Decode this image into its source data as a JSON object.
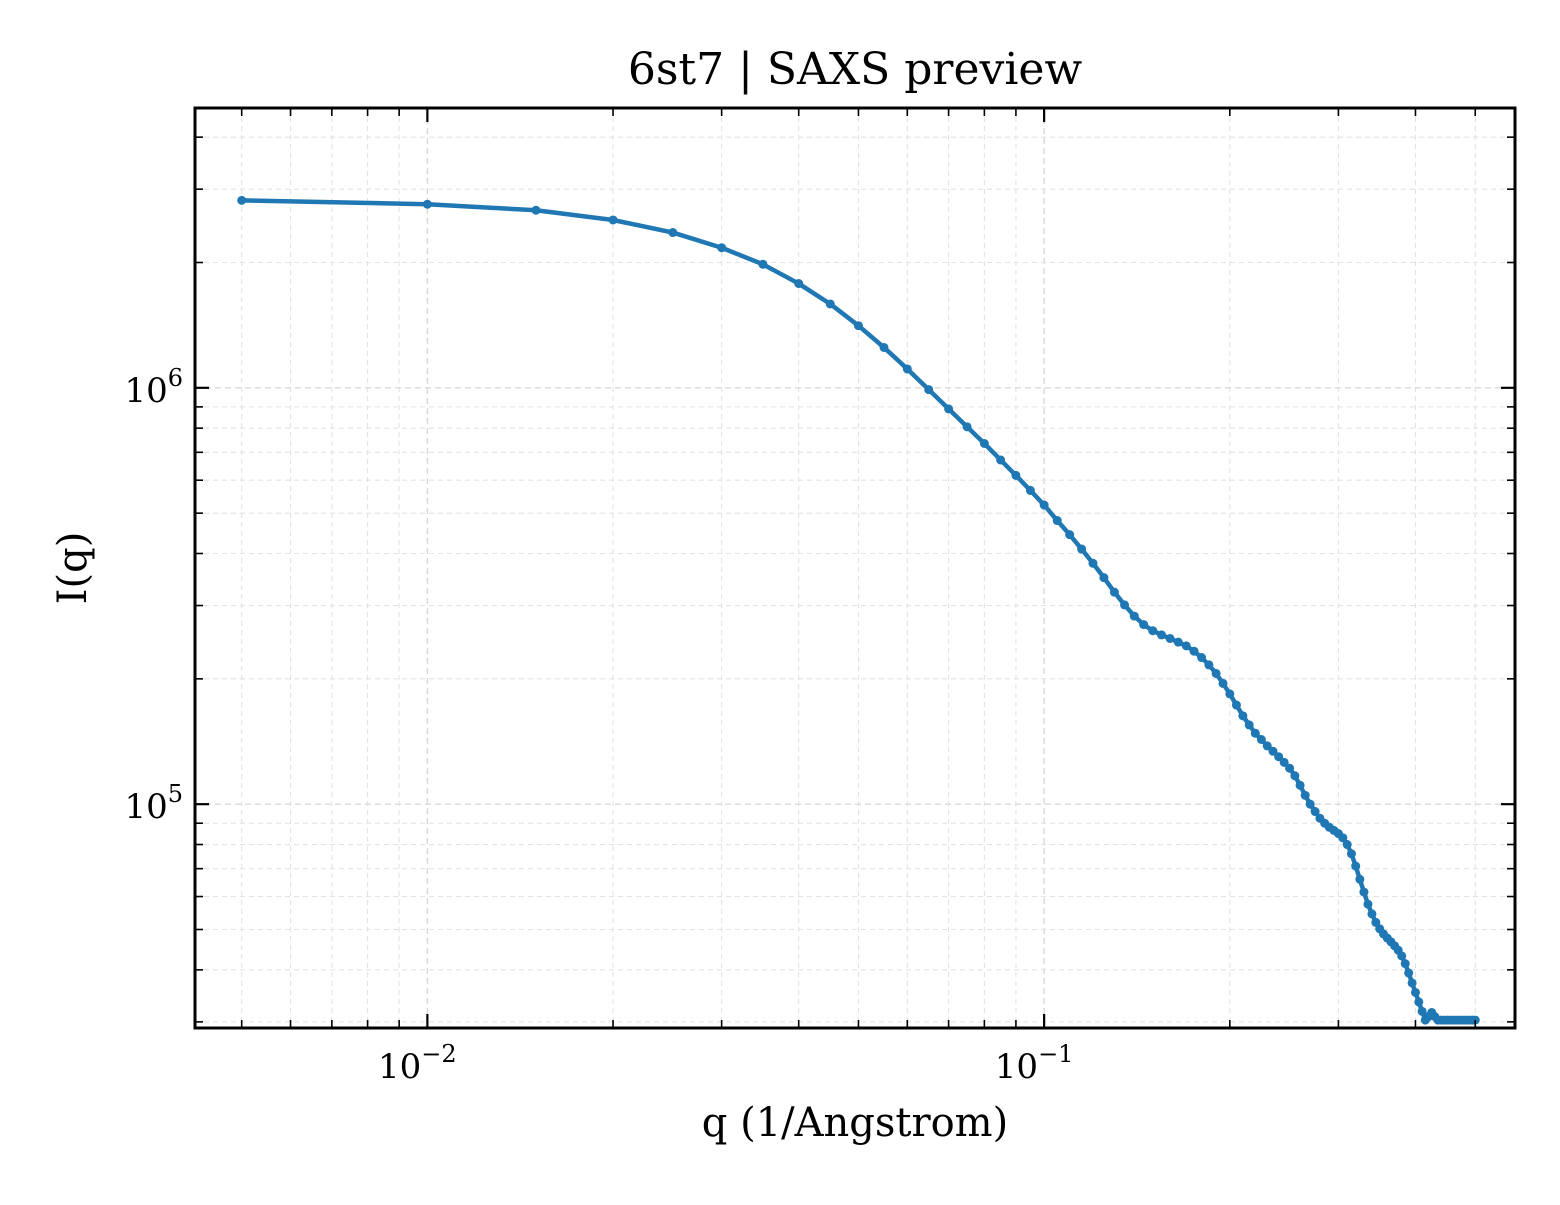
{
  "chart_data": {
    "type": "line",
    "title": "6st7 | SAXS preview",
    "xlabel": "q (1/Angstrom)",
    "ylabel": "I(q)",
    "xscale": "log",
    "yscale": "log",
    "xlim": [
      0.0042,
      0.58
    ],
    "ylim": [
      29000,
      4700000
    ],
    "grid": true,
    "x_ticks": [
      {
        "value": 0.01,
        "base": "10",
        "exp": "−2"
      },
      {
        "value": 0.1,
        "base": "10",
        "exp": "−1"
      }
    ],
    "y_ticks": [
      {
        "value": 100000,
        "base": "10",
        "exp": "5"
      },
      {
        "value": 1000000,
        "base": "10",
        "exp": "6"
      }
    ],
    "series": [
      {
        "color": "#1f77b4",
        "marker": "circle",
        "x": [
          0.005,
          0.01,
          0.015,
          0.02,
          0.025,
          0.03,
          0.035,
          0.04,
          0.045,
          0.05,
          0.055,
          0.06,
          0.065,
          0.07,
          0.075,
          0.08,
          0.085,
          0.09,
          0.095,
          0.1,
          0.105,
          0.11,
          0.115,
          0.12,
          0.125,
          0.13,
          0.135,
          0.14,
          0.145,
          0.15,
          0.155,
          0.16,
          0.165,
          0.17,
          0.175,
          0.18,
          0.185,
          0.19,
          0.195,
          0.2,
          0.205,
          0.21,
          0.215,
          0.22,
          0.225,
          0.23,
          0.235,
          0.24,
          0.245,
          0.25,
          0.255,
          0.26,
          0.265,
          0.27,
          0.275,
          0.28,
          0.285,
          0.29,
          0.295,
          0.3,
          0.305,
          0.31,
          0.315,
          0.32,
          0.325,
          0.33,
          0.335,
          0.34,
          0.345,
          0.35,
          0.355,
          0.36,
          0.365,
          0.37,
          0.375,
          0.38,
          0.385,
          0.39,
          0.395,
          0.4,
          0.405,
          0.41,
          0.415,
          0.42,
          0.425,
          0.43,
          0.435,
          0.44,
          0.445,
          0.45,
          0.455,
          0.46,
          0.465,
          0.47,
          0.475,
          0.48,
          0.485,
          0.49,
          0.495,
          0.5
        ],
        "y": [
          2820000,
          2760000,
          2670000,
          2530000,
          2360000,
          2170000,
          1980000,
          1780000,
          1590000,
          1410000,
          1250000,
          1110000,
          990000,
          890000,
          806000,
          735000,
          671000,
          616000,
          567000,
          523000,
          480000,
          444000,
          410000,
          379000,
          350000,
          323000,
          301000,
          283000,
          270000,
          261000,
          255000,
          250000,
          245000,
          240000,
          233000,
          225000,
          216000,
          206000,
          195000,
          184000,
          173000,
          163000,
          155000,
          148000,
          143000,
          138000,
          134000,
          130000,
          126000,
          122000,
          117000,
          111000,
          105000,
          100000,
          96000,
          92500,
          90000,
          88000,
          86500,
          85000,
          83000,
          80000,
          76000,
          71000,
          66000,
          61500,
          57500,
          54500,
          52000,
          50200,
          48800,
          47700,
          46700,
          45700,
          44600,
          43200,
          41400,
          39300,
          37200,
          35300,
          33500,
          31800,
          30300,
          30900,
          31600,
          30900,
          30300,
          30300,
          30300,
          30300,
          30300,
          30300,
          30300,
          30300,
          30300,
          30300,
          30300,
          30300,
          30300,
          30300
        ]
      }
    ]
  }
}
